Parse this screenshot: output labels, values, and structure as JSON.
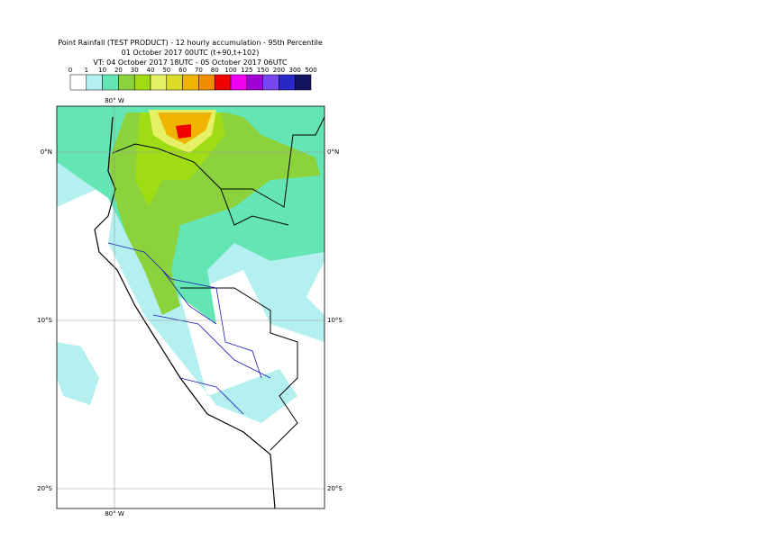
{
  "header": {
    "title": "Point Rainfall (TEST PRODUCT) - 12 hourly accumulation - 95th Percentile",
    "base_time": "01 October 2017 00UTC (t+90,t+102)",
    "valid_time": "VT: 04 October 2017 18UTC - 05 October 2017 06UTC"
  },
  "legend": {
    "labels": [
      "0",
      "1",
      "10",
      "20",
      "30",
      "40",
      "50",
      "60",
      "70",
      "80",
      "100",
      "125",
      "150",
      "200",
      "300",
      "500"
    ],
    "colors": [
      "#ffffff",
      "#b4f0f0",
      "#64e6b4",
      "#8cd23c",
      "#a0dc14",
      "#e6f064",
      "#dcdc28",
      "#f0b400",
      "#f08c00",
      "#f00000",
      "#f000f0",
      "#a000d2",
      "#7846f0",
      "#2828c8",
      "#141464"
    ]
  },
  "graticule": {
    "meridian": "80° W",
    "parallels": [
      "0°N",
      "10°S",
      "20°S"
    ]
  }
}
